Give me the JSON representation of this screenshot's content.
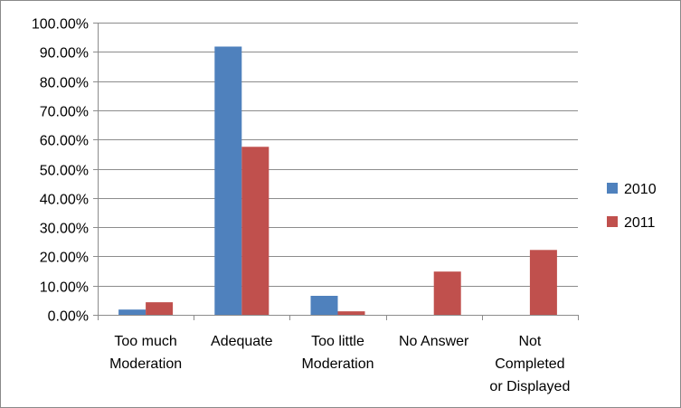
{
  "chart_data": {
    "type": "bar",
    "categories": [
      [
        "Too much",
        "Moderation"
      ],
      [
        "Adequate"
      ],
      [
        "Too little",
        "Moderation"
      ],
      [
        "No Answer"
      ],
      [
        "Not",
        "Completed",
        "or Displayed"
      ]
    ],
    "series": [
      {
        "name": "2010",
        "color": "#4F81BD",
        "values": [
          1.8,
          91.8,
          6.5,
          0,
          0
        ]
      },
      {
        "name": "2011",
        "color": "#C0504D",
        "values": [
          4.3,
          57.5,
          1.2,
          14.8,
          22.2
        ]
      }
    ],
    "ylim": [
      0,
      100
    ],
    "ytick_step": 10,
    "ytick_suffix": "%",
    "ytick_decimals": 2,
    "grid": true,
    "legend": "right",
    "title": "",
    "xlabel": "",
    "ylabel": ""
  }
}
